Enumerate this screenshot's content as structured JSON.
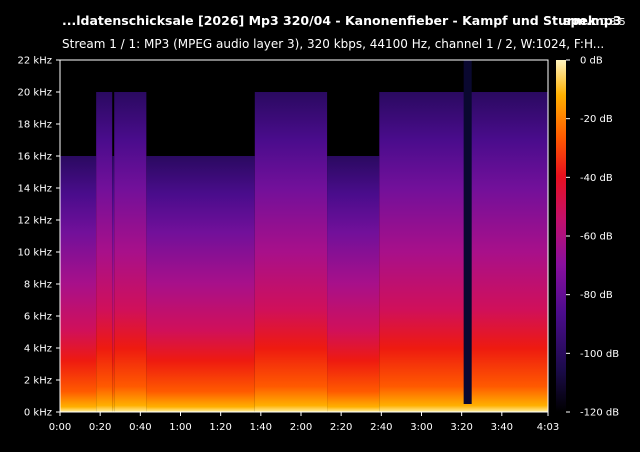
{
  "header": {
    "title": "...ldatenschicksale [2026] Mp3 320/04 - Kanonenfieber - Kampf und Sturm.mp3",
    "app_name": "spek",
    "app_version": "0.8.5",
    "subtitle": "Stream 1 / 1: MP3 (MPEG audio layer 3), 320 kbps, 44100 Hz, channel 1 / 2, W:1024, F:H..."
  },
  "chart_data": {
    "type": "heatmap",
    "title": "...ldatenschicksale [2026] Mp3 320/04 - Kanonenfieber - Kampf und Sturm.mp3",
    "xlabel": "",
    "ylabel": "",
    "x_ticks": [
      "0:00",
      "0:20",
      "0:40",
      "1:00",
      "1:20",
      "1:40",
      "2:00",
      "2:20",
      "2:40",
      "3:00",
      "3:20",
      "3:40",
      "4:03"
    ],
    "x_tick_seconds": [
      0,
      20,
      40,
      60,
      80,
      100,
      120,
      140,
      160,
      180,
      200,
      220,
      243
    ],
    "xlim_seconds": [
      0,
      243
    ],
    "y_ticks": [
      "0 kHz",
      "2 kHz",
      "4 kHz",
      "6 kHz",
      "8 kHz",
      "10 kHz",
      "12 kHz",
      "14 kHz",
      "16 kHz",
      "18 kHz",
      "20 kHz",
      "22 kHz"
    ],
    "y_tick_khz": [
      0,
      2,
      4,
      6,
      8,
      10,
      12,
      14,
      16,
      18,
      20,
      22
    ],
    "ylim_khz": [
      0,
      22
    ],
    "colorbar_ticks": [
      "0 dB",
      "-20 dB",
      "-40 dB",
      "-60 dB",
      "-80 dB",
      "-100 dB",
      "-120 dB"
    ],
    "colorbar_db": [
      0,
      -20,
      -40,
      -60,
      -80,
      -100,
      -120
    ],
    "colorbar_range_db": [
      -120,
      0
    ],
    "colormap": [
      "#000000",
      "#1b0b4a",
      "#4b0c8c",
      "#8a0f9e",
      "#c4106a",
      "#e8101e",
      "#ff5a00",
      "#ffb000",
      "#fff5c0"
    ],
    "bandwidth_cutoff_khz": 20,
    "reduced_cutoff_segments": [
      {
        "start_s": 0,
        "end_s": 18,
        "cutoff_khz": 16
      },
      {
        "start_s": 18,
        "end_s": 26,
        "cutoff_khz": 20
      },
      {
        "start_s": 26,
        "end_s": 27,
        "cutoff_khz": 16
      },
      {
        "start_s": 27,
        "end_s": 43,
        "cutoff_khz": 20
      },
      {
        "start_s": 43,
        "end_s": 97,
        "cutoff_khz": 16
      },
      {
        "start_s": 97,
        "end_s": 133,
        "cutoff_khz": 20
      },
      {
        "start_s": 133,
        "end_s": 159,
        "cutoff_khz": 16
      },
      {
        "start_s": 159,
        "end_s": 243,
        "cutoff_khz": 20
      }
    ],
    "silent_gap": {
      "start_s": 201,
      "end_s": 205
    },
    "grid": false,
    "legend": "right"
  }
}
